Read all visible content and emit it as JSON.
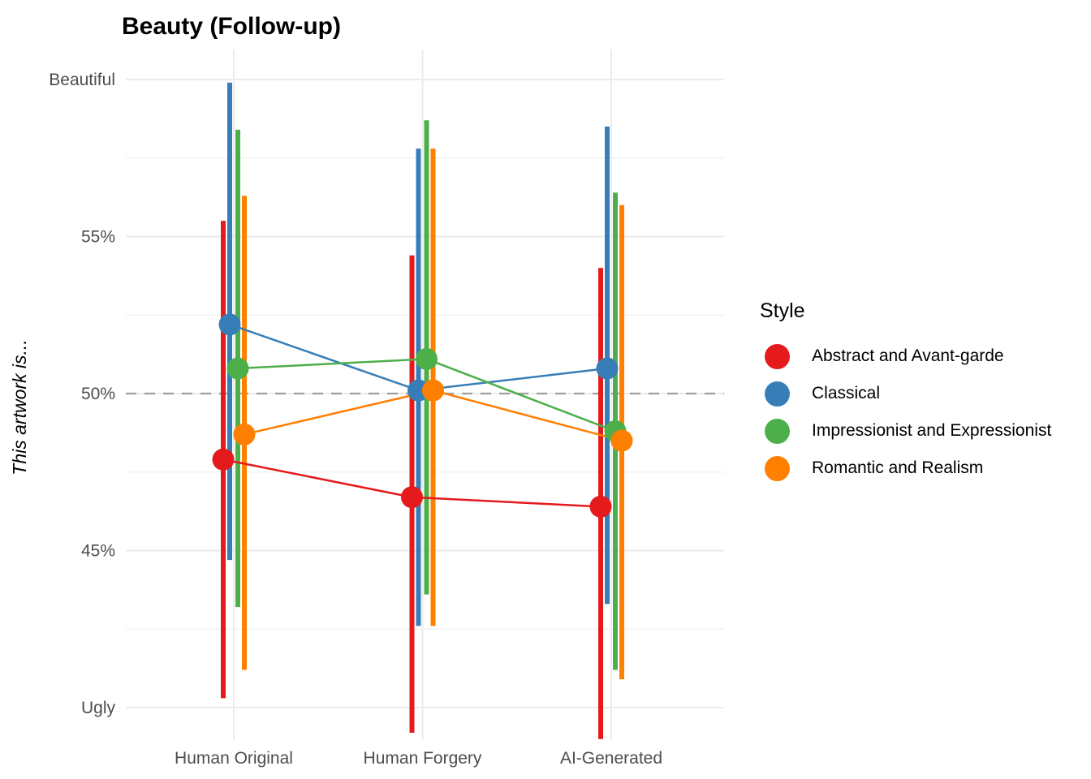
{
  "title": "Beauty (Follow-up)",
  "y_axis": {
    "label": "This artwork is...",
    "tick_labels": [
      "Beautiful",
      "55%",
      "50%",
      "45%",
      "Ugly"
    ]
  },
  "x_axis": {
    "categories": [
      "Human Original",
      "Human Forgery",
      "AI-Generated"
    ]
  },
  "legend": {
    "title": "Style",
    "position": "right",
    "items": [
      {
        "label": "Abstract and Avant-garde",
        "color": "#E41A1C"
      },
      {
        "label": "Classical",
        "color": "#377EB8"
      },
      {
        "label": "Impressionist and Expressionist",
        "color": "#4DAF4A"
      },
      {
        "label": "Romantic and Realism",
        "color": "#FF7F00"
      }
    ]
  },
  "chart_data": {
    "type": "line",
    "subtype": "point-range-with-ci-dodged",
    "title": "Beauty (Follow-up)",
    "xlabel": "",
    "ylabel": "This artwork is...",
    "categories": [
      "Human Original",
      "Human Forgery",
      "AI-Generated"
    ],
    "series": [
      {
        "name": "Abstract and Avant-garde",
        "color": "#E41A1C",
        "values": [
          47.9,
          46.7,
          46.4
        ],
        "ci_high": [
          55.5,
          54.4,
          54.0
        ],
        "ci_low": [
          40.3,
          39.2,
          39.0
        ]
      },
      {
        "name": "Classical",
        "color": "#377EB8",
        "values": [
          52.2,
          50.1,
          50.8
        ],
        "ci_high": [
          59.9,
          57.8,
          58.5
        ],
        "ci_low": [
          44.7,
          42.6,
          43.3
        ]
      },
      {
        "name": "Impressionist and Expressionist",
        "color": "#4DAF4A",
        "values": [
          50.8,
          51.1,
          48.8
        ],
        "ci_high": [
          58.4,
          58.7,
          56.4
        ],
        "ci_low": [
          43.2,
          43.6,
          41.2
        ]
      },
      {
        "name": "Romantic and Realism",
        "color": "#FF7F00",
        "values": [
          48.7,
          50.1,
          48.5
        ],
        "ci_high": [
          56.3,
          57.8,
          56.0
        ],
        "ci_low": [
          41.2,
          42.6,
          40.9
        ]
      }
    ],
    "ylim": [
      40,
      60
    ],
    "y_ticks": [
      {
        "value": 60,
        "label": "Beautiful"
      },
      {
        "value": 55,
        "label": "55%"
      },
      {
        "value": 50,
        "label": "50%"
      },
      {
        "value": 45,
        "label": "45%"
      },
      {
        "value": 40,
        "label": "Ugly"
      }
    ],
    "y_minor_gridlines": [
      57.5,
      52.5,
      47.5,
      42.5
    ],
    "reference_line": {
      "value": 50,
      "style": "dashed",
      "color": "#9E9E9E"
    },
    "grid": true,
    "gridline_color": "#EBEBEB",
    "legend_position": "right"
  }
}
